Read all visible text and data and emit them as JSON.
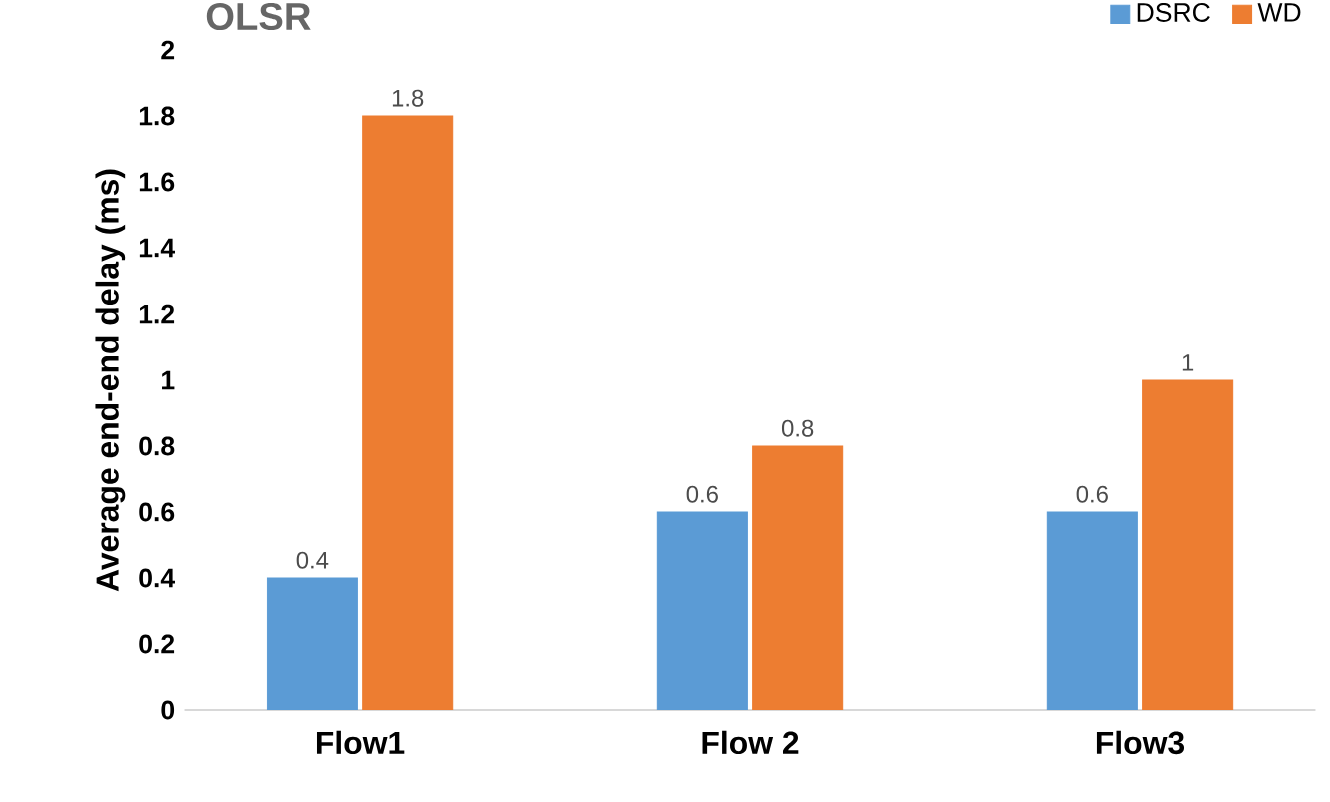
{
  "chart_data": {
    "type": "bar",
    "title": "OLSR",
    "ylabel": "Average end-end delay (ms)",
    "categories": [
      "Flow1",
      "Flow 2",
      "Flow3"
    ],
    "series": [
      {
        "name": "DSRC",
        "color": "#5b9bd5",
        "values": [
          0.4,
          0.6,
          0.6
        ]
      },
      {
        "name": "WD",
        "color": "#ed7d31",
        "values": [
          1.8,
          0.8,
          1
        ]
      }
    ],
    "ylim": [
      0,
      2
    ],
    "yticks": [
      0,
      0.2,
      0.4,
      0.6,
      0.8,
      1,
      1.2,
      1.4,
      1.6,
      1.8,
      2
    ],
    "grid": false,
    "legend": "top right",
    "data_labels": true
  }
}
